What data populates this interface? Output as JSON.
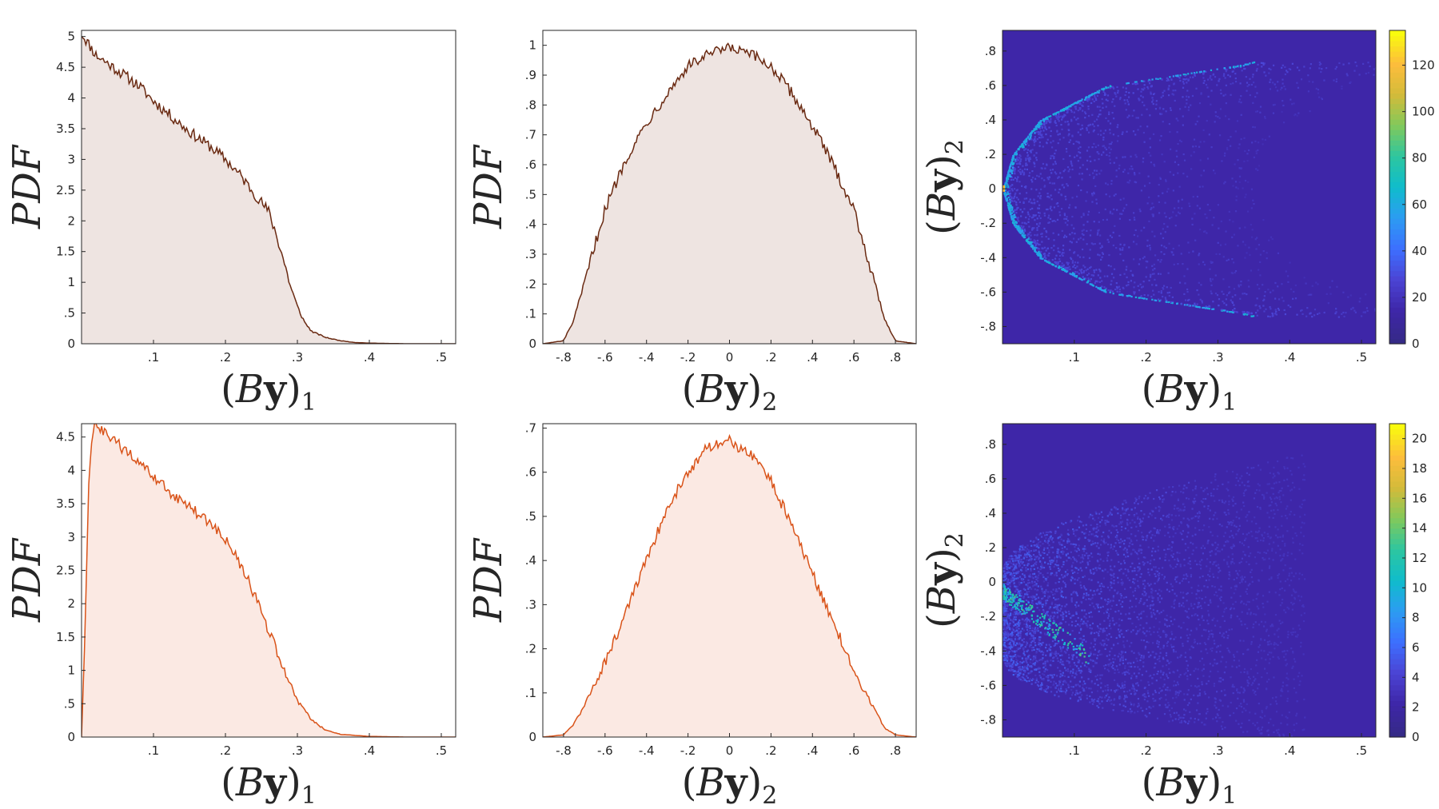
{
  "chart_data": [
    {
      "type": "area",
      "panel": "top-left",
      "xlabel": "(By)₁",
      "ylabel": "PDF",
      "xlim": [
        0.0,
        0.52
      ],
      "ylim": [
        0,
        5.1
      ],
      "xticks": [
        0.1,
        0.2,
        0.3,
        0.4,
        0.5
      ],
      "yticks": [
        0,
        0.5,
        1,
        1.5,
        2,
        2.5,
        3,
        3.5,
        4,
        4.5,
        5
      ],
      "line_color": "#6a2a12",
      "fill_color": "#eee4e1",
      "x": [
        0.0,
        0.02,
        0.05,
        0.08,
        0.1,
        0.12,
        0.15,
        0.18,
        0.2,
        0.22,
        0.24,
        0.26,
        0.27,
        0.28,
        0.29,
        0.3,
        0.31,
        0.32,
        0.34,
        0.36,
        0.38,
        0.4,
        0.45,
        0.52
      ],
      "y": [
        5.05,
        4.7,
        4.45,
        4.2,
        3.95,
        3.75,
        3.45,
        3.2,
        3.0,
        2.75,
        2.45,
        2.15,
        1.8,
        1.4,
        0.95,
        0.6,
        0.35,
        0.2,
        0.1,
        0.05,
        0.02,
        0.01,
        0.0,
        0.0
      ]
    },
    {
      "type": "area",
      "panel": "top-middle",
      "xlabel": "(By)₂",
      "ylabel": "PDF",
      "xlim": [
        -0.9,
        0.9
      ],
      "ylim": [
        0,
        1.05
      ],
      "xticks": [
        -0.8,
        -0.6,
        -0.4,
        -0.2,
        0,
        0.2,
        0.4,
        0.6,
        0.8
      ],
      "yticks": [
        0,
        0.1,
        0.2,
        0.3,
        0.4,
        0.5,
        0.6,
        0.7,
        0.8,
        0.9,
        1
      ],
      "line_color": "#6a2a12",
      "fill_color": "#eee4e1",
      "x": [
        -0.9,
        -0.8,
        -0.75,
        -0.7,
        -0.65,
        -0.6,
        -0.5,
        -0.4,
        -0.3,
        -0.2,
        -0.1,
        0.0,
        0.1,
        0.2,
        0.3,
        0.4,
        0.5,
        0.6,
        0.65,
        0.7,
        0.75,
        0.8,
        0.9
      ],
      "y": [
        0.0,
        0.01,
        0.08,
        0.2,
        0.33,
        0.45,
        0.62,
        0.74,
        0.84,
        0.93,
        0.97,
        0.99,
        0.97,
        0.93,
        0.84,
        0.73,
        0.6,
        0.45,
        0.33,
        0.2,
        0.08,
        0.01,
        0.0
      ]
    },
    {
      "type": "heatmap",
      "panel": "top-right",
      "xlabel": "(By)₁",
      "ylabel": "(By)₂",
      "xlim": [
        0.0,
        0.52
      ],
      "ylim": [
        -0.9,
        0.92
      ],
      "xticks": [
        0.1,
        0.2,
        0.3,
        0.4,
        0.5
      ],
      "yticks": [
        -0.8,
        -0.6,
        -0.4,
        -0.2,
        0,
        0.2,
        0.4,
        0.6,
        0.8
      ],
      "colorbar_ticks": [
        0,
        20,
        40,
        60,
        80,
        100,
        120
      ],
      "colorbar_max": 135,
      "shape": "parabolic band opening right, bright edge along boundary",
      "boundary_x_at_y": [
        [
          0.0,
          0.0
        ],
        [
          0.2,
          0.014
        ],
        [
          0.4,
          0.052
        ],
        [
          0.6,
          0.145
        ],
        [
          0.72,
          0.33
        ],
        [
          0.75,
          0.36
        ]
      ]
    },
    {
      "type": "area",
      "panel": "bottom-left",
      "xlabel": "(By)₁",
      "ylabel": "PDF",
      "xlim": [
        0.0,
        0.52
      ],
      "ylim": [
        0,
        4.7
      ],
      "xticks": [
        0.1,
        0.2,
        0.3,
        0.4,
        0.5
      ],
      "yticks": [
        0,
        0.5,
        1,
        1.5,
        2,
        2.5,
        3,
        3.5,
        4,
        4.5
      ],
      "line_color": "#d95319",
      "fill_color": "#fbe9e3",
      "x": [
        0.0,
        0.005,
        0.01,
        0.015,
        0.02,
        0.05,
        0.08,
        0.1,
        0.12,
        0.15,
        0.18,
        0.2,
        0.22,
        0.24,
        0.26,
        0.28,
        0.3,
        0.32,
        0.34,
        0.36,
        0.4,
        0.45,
        0.52
      ],
      "y": [
        0.0,
        1.6,
        3.8,
        4.6,
        4.65,
        4.4,
        4.1,
        3.9,
        3.7,
        3.45,
        3.2,
        2.95,
        2.6,
        2.15,
        1.6,
        1.05,
        0.55,
        0.25,
        0.1,
        0.04,
        0.01,
        0.0,
        0.0
      ]
    },
    {
      "type": "area",
      "panel": "bottom-middle",
      "xlabel": "(By)₂",
      "ylabel": "PDF",
      "xlim": [
        -0.9,
        0.9
      ],
      "ylim": [
        0,
        0.71
      ],
      "xticks": [
        -0.8,
        -0.6,
        -0.4,
        -0.2,
        0,
        0.2,
        0.4,
        0.6,
        0.8
      ],
      "yticks": [
        0,
        0.1,
        0.2,
        0.3,
        0.4,
        0.5,
        0.6,
        0.7
      ],
      "line_color": "#d95319",
      "fill_color": "#fbe9e3",
      "x": [
        -0.9,
        -0.8,
        -0.75,
        -0.7,
        -0.6,
        -0.5,
        -0.4,
        -0.3,
        -0.2,
        -0.1,
        0.0,
        0.1,
        0.2,
        0.3,
        0.4,
        0.5,
        0.6,
        0.7,
        0.75,
        0.8,
        0.9
      ],
      "y": [
        0.0,
        0.005,
        0.03,
        0.07,
        0.17,
        0.28,
        0.4,
        0.52,
        0.6,
        0.66,
        0.67,
        0.64,
        0.58,
        0.48,
        0.37,
        0.26,
        0.15,
        0.06,
        0.02,
        0.005,
        0.0
      ]
    },
    {
      "type": "heatmap",
      "panel": "bottom-right",
      "xlabel": "(By)₁",
      "ylabel": "(By)₂",
      "xlim": [
        0.0,
        0.52
      ],
      "ylim": [
        -0.9,
        0.92
      ],
      "xticks": [
        0.1,
        0.2,
        0.3,
        0.4,
        0.5
      ],
      "yticks": [
        -0.8,
        -0.6,
        -0.4,
        -0.2,
        0,
        0.2,
        0.4,
        0.6,
        0.8
      ],
      "colorbar_ticks": [
        0,
        2,
        4,
        6,
        8,
        10,
        12,
        14,
        16,
        18,
        20
      ],
      "colorbar_max": 21,
      "shape": "diffuse cloud skewed to negative (By)2, bright ridge near (0.01..0.1, -0.35..0.05)"
    }
  ],
  "colors": {
    "heatmap_background": "#3e26a8",
    "parula": [
      "#352a87",
      "#3e26a8",
      "#4b44d4",
      "#3d6fff",
      "#2c9cf2",
      "#10bccc",
      "#2dc6a0",
      "#81c95b",
      "#d3bb3a",
      "#fdbd3c",
      "#f9fb0e"
    ]
  }
}
